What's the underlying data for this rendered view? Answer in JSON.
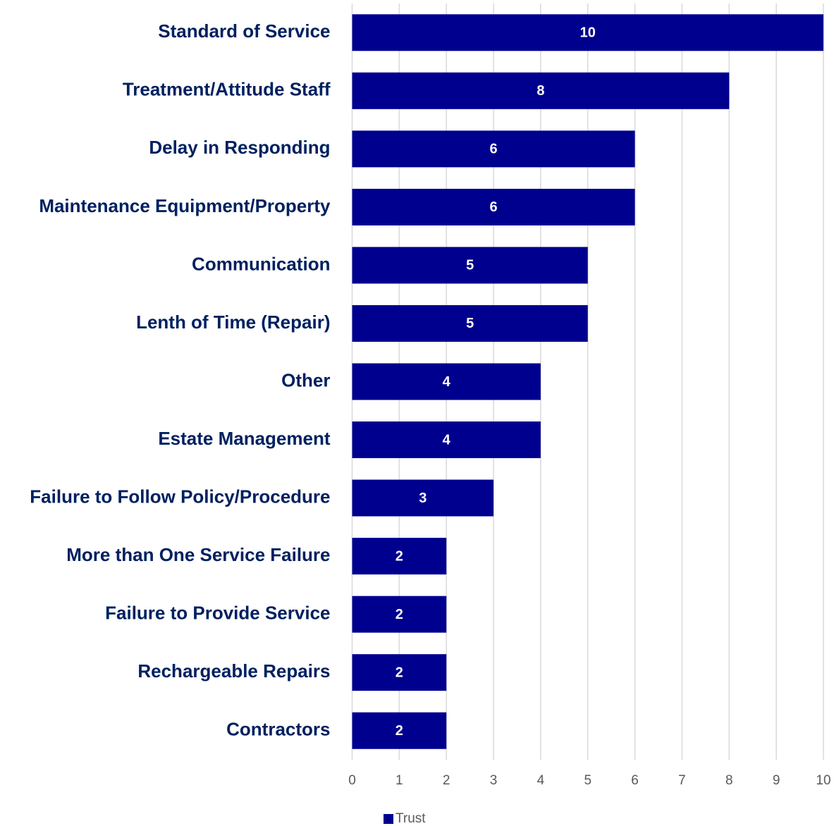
{
  "chart_data": {
    "type": "bar",
    "orientation": "horizontal",
    "categories": [
      "Standard of Service",
      "Treatment/Attitude Staff",
      "Delay in Responding",
      "Maintenance Equipment/Property",
      "Communication",
      "Lenth of Time (Repair)",
      "Other",
      "Estate Management",
      "Failure to Follow Policy/Procedure",
      "More than One Service Failure",
      "Failure to Provide Service",
      "Rechargeable Repairs",
      "Contractors"
    ],
    "series": [
      {
        "name": "Trust",
        "color": "#00008f",
        "values": [
          10,
          8,
          6,
          6,
          5,
          5,
          4,
          4,
          3,
          2,
          2,
          2,
          2
        ]
      }
    ],
    "xlim": [
      0,
      10
    ],
    "xticks": [
      0,
      1,
      2,
      3,
      4,
      5,
      6,
      7,
      8,
      9,
      10
    ],
    "grid": true,
    "legend": "bottom"
  }
}
